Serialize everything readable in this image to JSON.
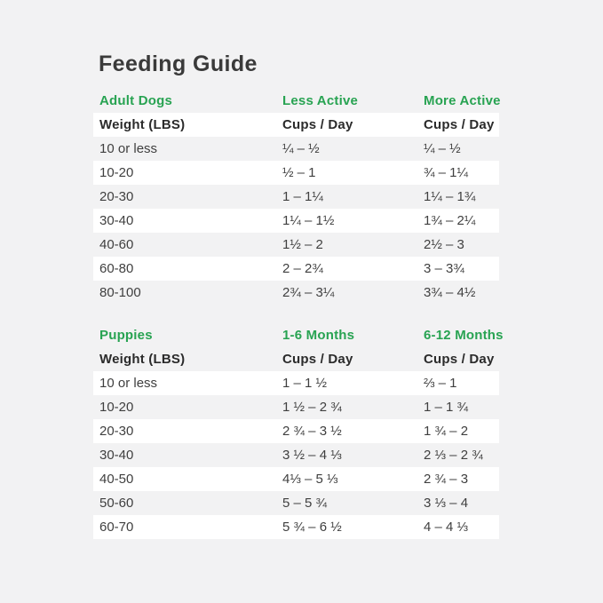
{
  "title": "Feeding Guide",
  "colors": {
    "background": "#f2f2f3",
    "row_highlight": "#ffffff",
    "accent_green": "#28a352",
    "title_text": "#3a3a3a",
    "header_text": "#2b2b2b",
    "body_text": "#3f3f3f"
  },
  "adult_table": {
    "section_headers": {
      "col1": "Adult Dogs",
      "col2": "Less Active",
      "col3": "More Active"
    },
    "column_headers": {
      "col1": "Weight (LBS)",
      "col2": "Cups / Day",
      "col3": "Cups / Day"
    },
    "rows": [
      {
        "weight": "10 or less",
        "less_active": "¼ – ½",
        "more_active": "¼ – ½"
      },
      {
        "weight": "10-20",
        "less_active": "½ – 1",
        "more_active": "¾ – 1¼"
      },
      {
        "weight": "20-30",
        "less_active": "1 – 1¼",
        "more_active": "1¼ – 1¾"
      },
      {
        "weight": "30-40",
        "less_active": "1¼ – 1½",
        "more_active": "1¾ – 2¼"
      },
      {
        "weight": "40-60",
        "less_active": "1½ – 2",
        "more_active": "2½ – 3"
      },
      {
        "weight": "60-80",
        "less_active": "2 – 2¾",
        "more_active": "3 – 3¾"
      },
      {
        "weight": "80-100",
        "less_active": "2¾ – 3¼",
        "more_active": "3¾ – 4½"
      }
    ]
  },
  "puppy_table": {
    "section_headers": {
      "col1": "Puppies",
      "col2": "1-6 Months",
      "col3": "6-12 Months"
    },
    "column_headers": {
      "col1": "Weight (LBS)",
      "col2": "Cups / Day",
      "col3": "Cups / Day"
    },
    "rows": [
      {
        "weight": "10 or less",
        "months_1_6": "1 – 1 ½",
        "months_6_12": "⅔ – 1"
      },
      {
        "weight": "10-20",
        "months_1_6": "1 ½ – 2 ¾",
        "months_6_12": "1 – 1 ¾"
      },
      {
        "weight": "20-30",
        "months_1_6": "2 ¾ – 3 ½",
        "months_6_12": "1 ¾ – 2"
      },
      {
        "weight": "30-40",
        "months_1_6": "3 ½ – 4 ⅓",
        "months_6_12": "2 ⅓ – 2 ¾"
      },
      {
        "weight": "40-50",
        "months_1_6": "4⅓ – 5 ⅓",
        "months_6_12": "2 ¾ – 3"
      },
      {
        "weight": "50-60",
        "months_1_6": "5 – 5 ¾",
        "months_6_12": "3 ⅓ – 4"
      },
      {
        "weight": "60-70",
        "months_1_6": "5 ¾ – 6 ½",
        "months_6_12": "4 – 4 ⅓"
      }
    ]
  }
}
